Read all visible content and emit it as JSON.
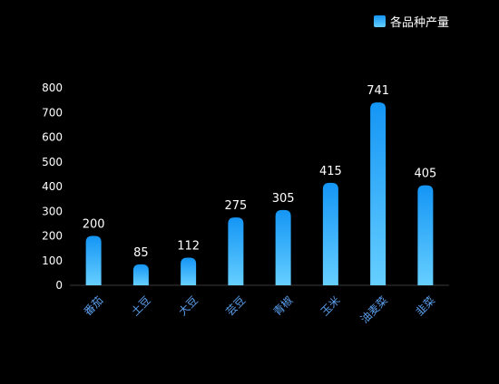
{
  "chart_data": {
    "type": "bar",
    "categories": [
      "番茄",
      "土豆",
      "大豆",
      "芸豆",
      "青椒",
      "玉米",
      "油麦菜",
      "韭菜"
    ],
    "series": [
      {
        "name": "各品种产量",
        "values": [
          200,
          85,
          112,
          275,
          305,
          415,
          741,
          405
        ]
      }
    ],
    "ylim": [
      0,
      800
    ],
    "yticks": [
      0,
      100,
      200,
      300,
      400,
      500,
      600,
      700,
      800
    ],
    "grid": false,
    "legend_position": "top-right",
    "colors": {
      "background": "#000000",
      "bar_top": "#1495f5",
      "bar_bottom": "#66cfff",
      "axis_line": "#3a3a3a",
      "y_tick_label": "#ffffff",
      "x_tick_label": "#5aa0ee",
      "data_label": "#ffffff",
      "legend_text": "#ffffff"
    }
  }
}
